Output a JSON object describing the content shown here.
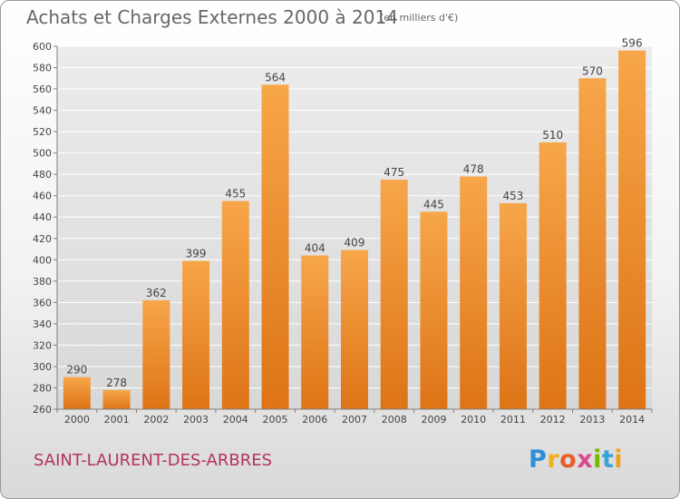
{
  "chart_data": {
    "type": "bar",
    "title": "Achats et Charges Externes 2000 à 2014",
    "subtitle": "(en milliers d'€)",
    "xlabel": "",
    "ylabel": "",
    "categories": [
      "2000",
      "2001",
      "2002",
      "2003",
      "2004",
      "2005",
      "2006",
      "2007",
      "2008",
      "2009",
      "2010",
      "2011",
      "2012",
      "2013",
      "2014"
    ],
    "values": [
      290,
      278,
      362,
      399,
      455,
      564,
      404,
      409,
      475,
      445,
      478,
      453,
      510,
      570,
      596
    ],
    "ylim": [
      260,
      600
    ],
    "yticks": [
      260,
      280,
      300,
      320,
      340,
      360,
      380,
      400,
      420,
      440,
      460,
      480,
      500,
      520,
      540,
      560,
      580,
      600
    ],
    "grid": true,
    "colors": {
      "bar_light": "#f7a64a",
      "bar_dark": "#e07a1a",
      "grid": "#ffffff",
      "axis": "#7f7f7f"
    }
  },
  "footer": {
    "place": "SAINT-LAURENT-DES-ARBRES"
  },
  "logo": {
    "letters": [
      "P",
      "r",
      "o",
      "x",
      "i",
      "t",
      "i"
    ]
  }
}
